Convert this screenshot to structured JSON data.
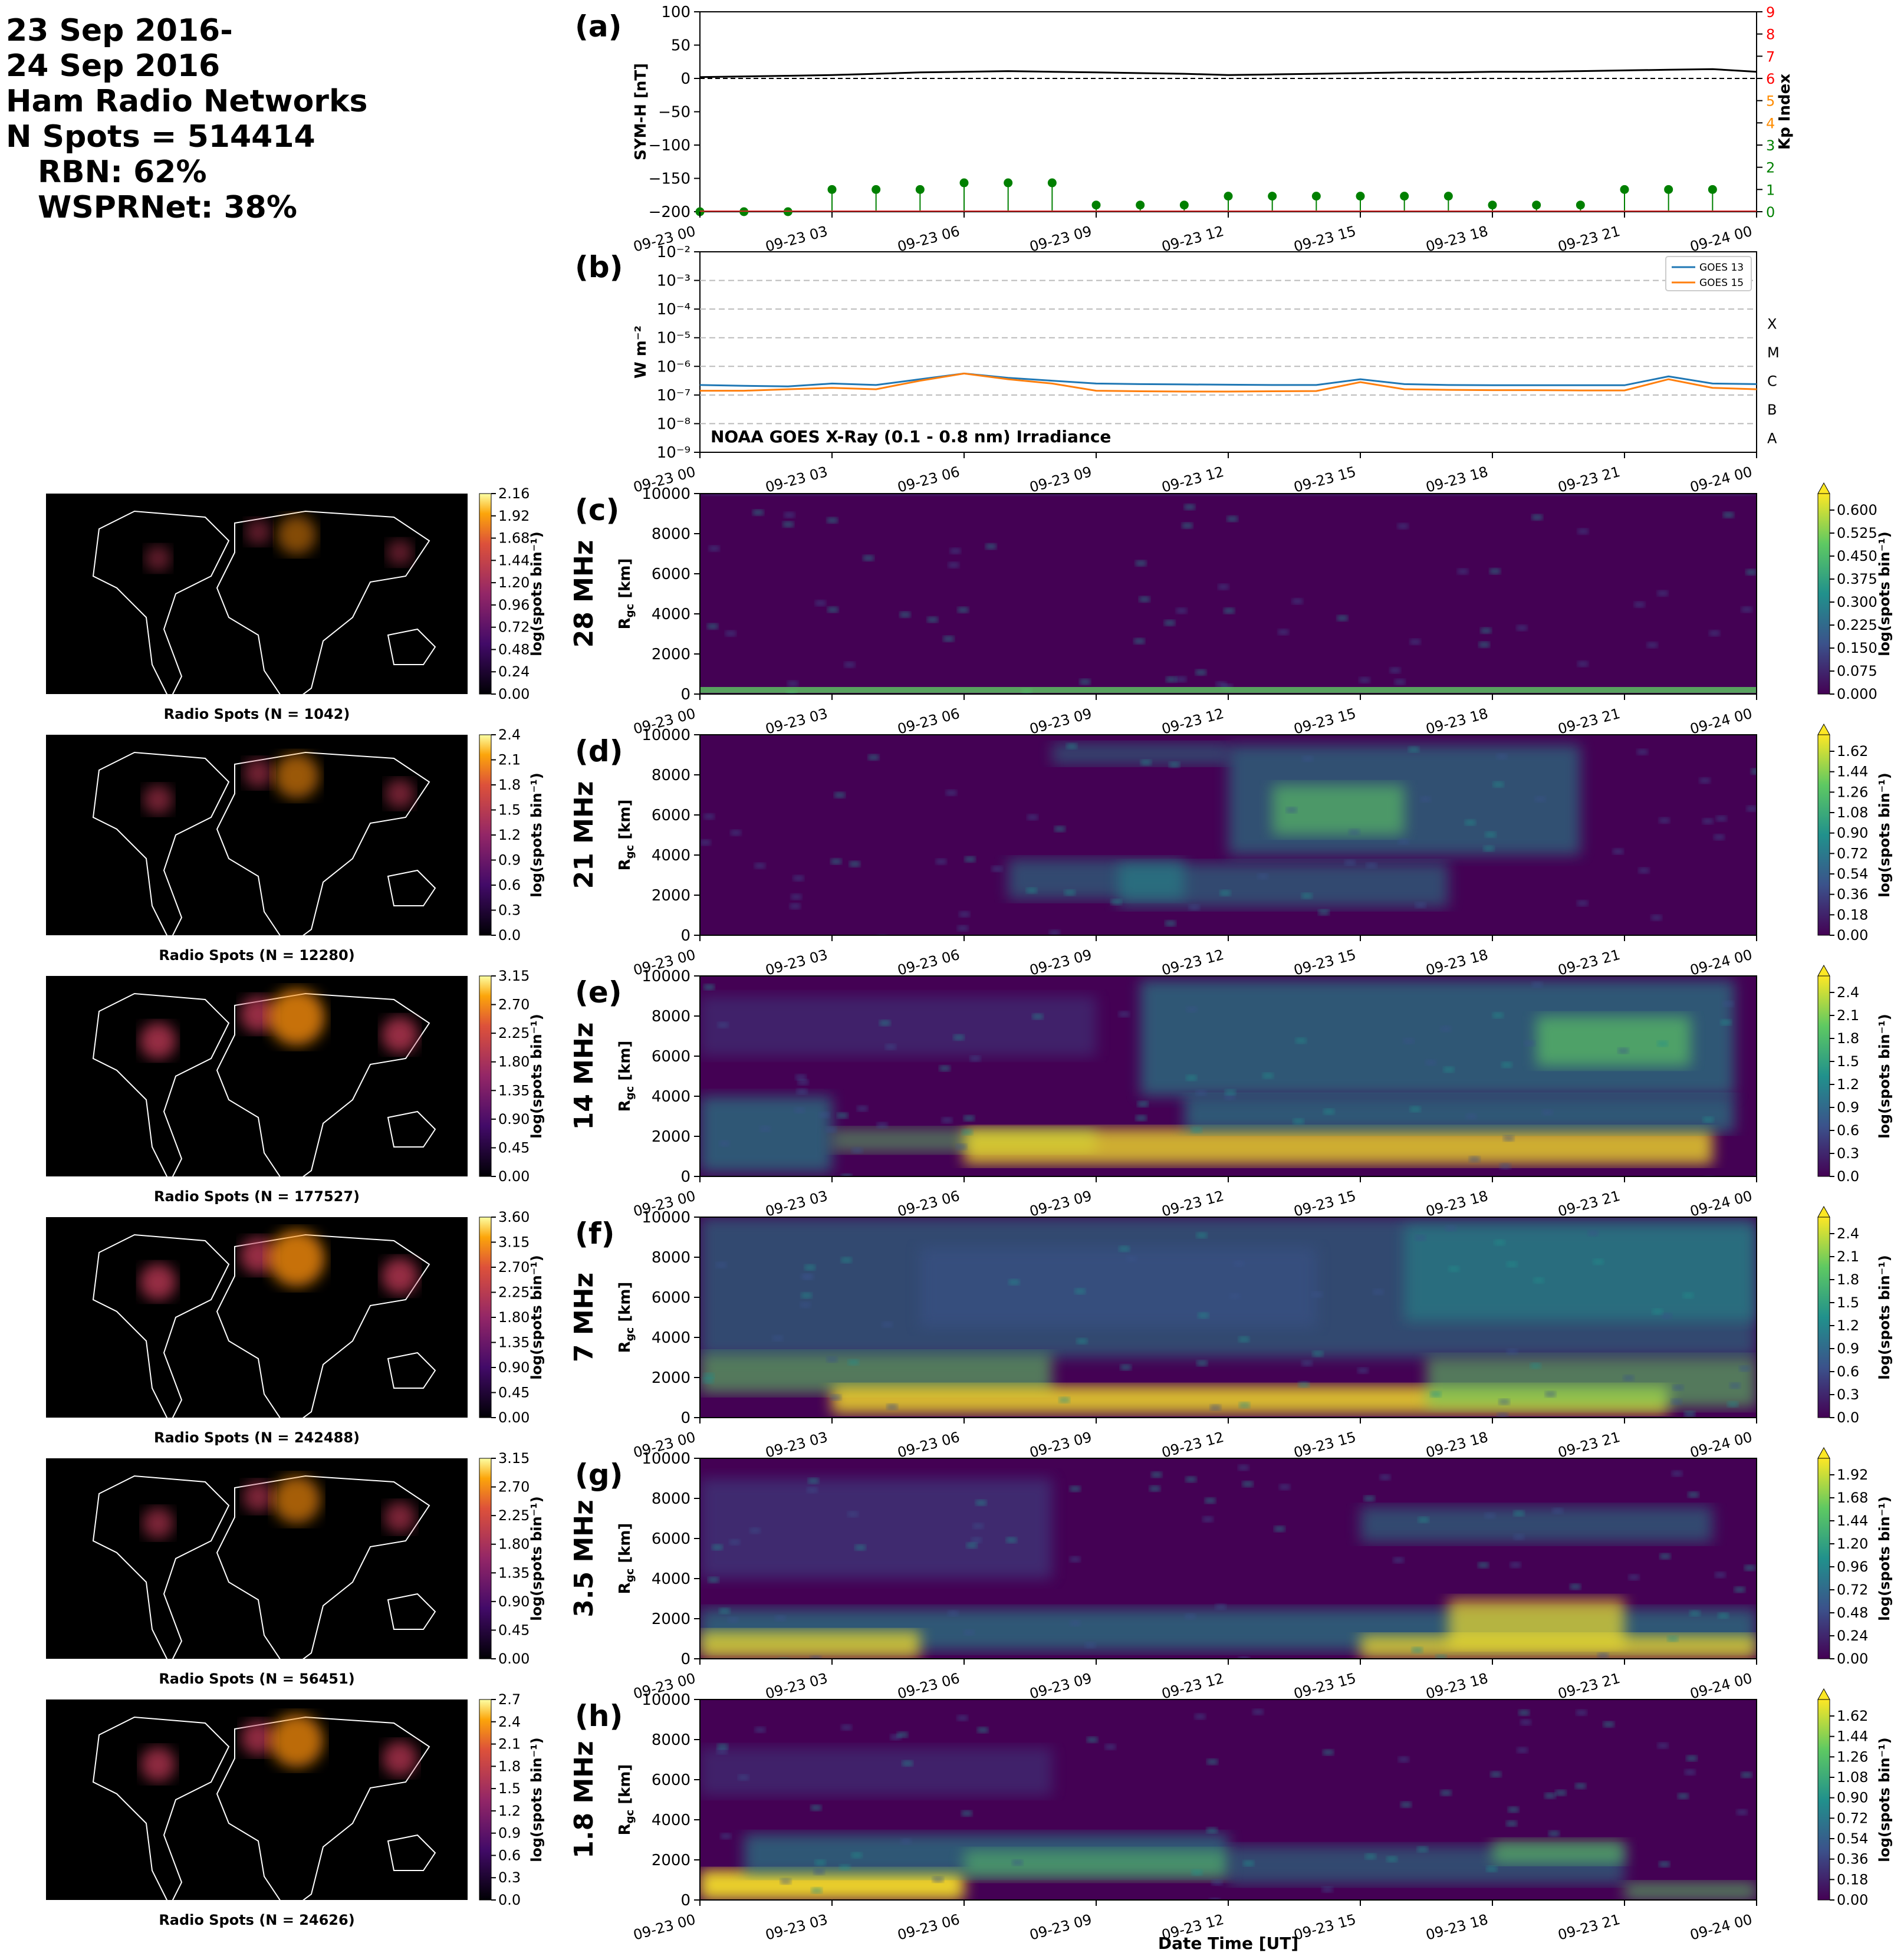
{
  "header": {
    "lines": [
      "23 Sep 2016-",
      "24 Sep 2016",
      "Ham Radio Networks",
      "N Spots = 514414"
    ],
    "sublines": [
      "RBN: 62%",
      "WSPRNet: 38%"
    ]
  },
  "time_ticks": [
    "09-23 00",
    "09-23 03",
    "09-23 06",
    "09-23 09",
    "09-23 12",
    "09-23 15",
    "09-23 18",
    "09-23 21",
    "09-24 00"
  ],
  "xlabel": "Date Time [UT]",
  "chart_data": [
    {
      "id": "a",
      "type": "line",
      "panel_label": "(a)",
      "x": [
        "09-23 00",
        "09-23 03",
        "09-23 06",
        "09-23 09",
        "09-23 12",
        "09-23 15",
        "09-23 18",
        "09-23 21",
        "09-24 00"
      ],
      "ylabel": "SYM-H [nT]",
      "ylim": [
        -200,
        100
      ],
      "yticks": [
        "100",
        "50",
        "0",
        "−50",
        "−100",
        "−150",
        "−200"
      ],
      "symh_hours": [
        0,
        1,
        2,
        3,
        4,
        5,
        6,
        7,
        8,
        9,
        10,
        11,
        12,
        13,
        14,
        15,
        16,
        17,
        18,
        19,
        20,
        21,
        22,
        23,
        24
      ],
      "symh_values": [
        2,
        3,
        4,
        5,
        7,
        9,
        10,
        11,
        10,
        9,
        8,
        7,
        5,
        6,
        7,
        8,
        9,
        9,
        10,
        10,
        11,
        12,
        13,
        14,
        10
      ],
      "y2label": "Kp Index",
      "y2lim": [
        0,
        9
      ],
      "y2ticks": [
        "0",
        "1",
        "2",
        "3",
        "4",
        "5",
        "6",
        "7",
        "8",
        "9"
      ],
      "kp_times": [
        0,
        1,
        2,
        3,
        4,
        5,
        6,
        7,
        8,
        9,
        10,
        11,
        12,
        13,
        14,
        15,
        16,
        17,
        18,
        19,
        20,
        21,
        22,
        23
      ],
      "kp_values": [
        0,
        0,
        0,
        1,
        1,
        1,
        1.3,
        1.3,
        1.3,
        0.3,
        0.3,
        0.3,
        0.7,
        0.7,
        0.7,
        0.7,
        0.7,
        0.7,
        0.3,
        0.3,
        0.3,
        1,
        1,
        1
      ],
      "colors": {
        "symh": "#000000",
        "kp": "#008000",
        "ticks_low": "#008000",
        "ticks_mid": "#ff8c00",
        "ticks_high": "#ff0000"
      }
    },
    {
      "id": "b",
      "type": "line",
      "panel_label": "(b)",
      "ylabel": "W m⁻²",
      "yscale": "log",
      "ylim": [
        1e-09,
        0.01
      ],
      "yticks": [
        "10⁻²",
        "10⁻³",
        "10⁻⁴",
        "10⁻⁵",
        "10⁻⁶",
        "10⁻⁷",
        "10⁻⁸",
        "10⁻⁹"
      ],
      "flare_classes": [
        "X",
        "M",
        "C",
        "B",
        "A"
      ],
      "annotation": "NOAA GOES X-Ray (0.1 - 0.8 nm) Irradiance",
      "legend_position": "top-right",
      "series": [
        {
          "name": "GOES 13",
          "color": "#1f77b4",
          "hours": [
            0,
            1,
            2,
            3,
            4,
            5,
            6,
            7,
            8,
            9,
            10,
            11,
            12,
            13,
            14,
            15,
            16,
            17,
            18,
            19,
            20,
            21,
            22,
            23,
            24
          ],
          "log_values": [
            -6.65,
            -6.68,
            -6.7,
            -6.6,
            -6.65,
            -6.45,
            -6.25,
            -6.4,
            -6.5,
            -6.6,
            -6.62,
            -6.63,
            -6.64,
            -6.65,
            -6.65,
            -6.45,
            -6.62,
            -6.65,
            -6.66,
            -6.66,
            -6.66,
            -6.66,
            -6.35,
            -6.6,
            -6.62
          ]
        },
        {
          "name": "GOES 15",
          "color": "#ff7f0e",
          "hours": [
            0,
            1,
            2,
            3,
            4,
            5,
            6,
            7,
            8,
            9,
            10,
            11,
            12,
            13,
            14,
            15,
            16,
            17,
            18,
            19,
            20,
            21,
            22,
            23,
            24
          ],
          "log_values": [
            -6.85,
            -6.85,
            -6.8,
            -6.75,
            -6.8,
            -6.5,
            -6.25,
            -6.45,
            -6.6,
            -6.85,
            -6.87,
            -6.88,
            -6.88,
            -6.87,
            -6.86,
            -6.55,
            -6.8,
            -6.82,
            -6.83,
            -6.83,
            -6.84,
            -6.84,
            -6.45,
            -6.75,
            -6.8
          ]
        }
      ]
    }
  ],
  "bands": [
    {
      "id": "c",
      "panel_label": "(c)",
      "band": "28 MHz",
      "n_label": "Radio Spots (N = 1042)",
      "map_cbar_ticks": [
        "2.16",
        "1.92",
        "1.68",
        "1.44",
        "1.20",
        "0.96",
        "0.72",
        "0.48",
        "0.24",
        "0.00"
      ],
      "rtp_cbar_ticks": [
        "0.600",
        "0.525",
        "0.450",
        "0.375",
        "0.300",
        "0.225",
        "0.150",
        "0.075",
        "0.000"
      ]
    },
    {
      "id": "d",
      "panel_label": "(d)",
      "band": "21 MHz",
      "n_label": "Radio Spots (N = 12280)",
      "map_cbar_ticks": [
        "2.4",
        "2.1",
        "1.8",
        "1.5",
        "1.2",
        "0.9",
        "0.6",
        "0.3",
        "0.0"
      ],
      "rtp_cbar_ticks": [
        "1.62",
        "1.44",
        "1.26",
        "1.08",
        "0.90",
        "0.72",
        "0.54",
        "0.36",
        "0.18",
        "0.00"
      ]
    },
    {
      "id": "e",
      "panel_label": "(e)",
      "band": "14 MHz",
      "n_label": "Radio Spots (N = 177527)",
      "map_cbar_ticks": [
        "3.15",
        "2.70",
        "2.25",
        "1.80",
        "1.35",
        "0.90",
        "0.45",
        "0.00"
      ],
      "rtp_cbar_ticks": [
        "2.4",
        "2.1",
        "1.8",
        "1.5",
        "1.2",
        "0.9",
        "0.6",
        "0.3",
        "0.0"
      ]
    },
    {
      "id": "f",
      "panel_label": "(f)",
      "band": "7 MHz",
      "n_label": "Radio Spots (N = 242488)",
      "map_cbar_ticks": [
        "3.60",
        "3.15",
        "2.70",
        "2.25",
        "1.80",
        "1.35",
        "0.90",
        "0.45",
        "0.00"
      ],
      "rtp_cbar_ticks": [
        "2.4",
        "2.1",
        "1.8",
        "1.5",
        "1.2",
        "0.9",
        "0.6",
        "0.3",
        "0.0"
      ]
    },
    {
      "id": "g",
      "panel_label": "(g)",
      "band": "3.5 MHz",
      "n_label": "Radio Spots (N = 56451)",
      "map_cbar_ticks": [
        "3.15",
        "2.70",
        "2.25",
        "1.80",
        "1.35",
        "0.90",
        "0.45",
        "0.00"
      ],
      "rtp_cbar_ticks": [
        "1.92",
        "1.68",
        "1.44",
        "1.20",
        "0.96",
        "0.72",
        "0.48",
        "0.24",
        "0.00"
      ]
    },
    {
      "id": "h",
      "panel_label": "(h)",
      "band": "1.8 MHz",
      "n_label": "Radio Spots (N = 24626)",
      "map_cbar_ticks": [
        "2.7",
        "2.4",
        "2.1",
        "1.8",
        "1.5",
        "1.2",
        "0.9",
        "0.6",
        "0.3",
        "0.0"
      ],
      "rtp_cbar_ticks": [
        "1.62",
        "1.44",
        "1.26",
        "1.08",
        "0.90",
        "0.72",
        "0.54",
        "0.36",
        "0.18",
        "0.00"
      ]
    }
  ],
  "rtp_yticks": [
    "10000",
    "8000",
    "6000",
    "4000",
    "2000",
    "0"
  ],
  "rtp_ylabel": "R",
  "rtp_ylabel_sub": "gc",
  "rtp_ylabel_unit": " [km]",
  "cbar_label": "log(spots bin⁻¹)"
}
